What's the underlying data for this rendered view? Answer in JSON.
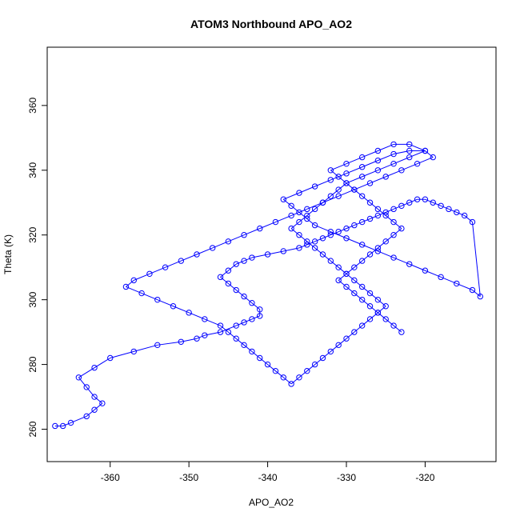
{
  "chart_data": {
    "type": "scatter",
    "title": "ATOM3 Northbound APO_AO2",
    "xlabel": "APO_AO2",
    "ylabel": "Theta (K)",
    "xlim": [
      -368,
      -311
    ],
    "ylim": [
      250,
      378
    ],
    "x_ticks": [
      -360,
      -350,
      -340,
      -330,
      -320
    ],
    "y_ticks": [
      260,
      280,
      300,
      320,
      340,
      360
    ],
    "series": [
      {
        "color": "#0000ff",
        "marker": "open-circle",
        "connected": true,
        "x": [
          -367,
          -366,
          -365,
          -363,
          -362,
          -361,
          -362,
          -363,
          -364,
          -362,
          -360,
          -357,
          -354,
          -351,
          -349,
          -348,
          -346,
          -344,
          -343,
          -342,
          -341,
          -341,
          -342,
          -343,
          -344,
          -345,
          -346,
          -345,
          -344,
          -343,
          -342,
          -340,
          -338,
          -336,
          -335,
          -334,
          -333,
          -332,
          -331,
          -330,
          -329,
          -328,
          -327,
          -326,
          -325,
          -324,
          -323,
          -322,
          -321,
          -320,
          -319,
          -318,
          -317,
          -316,
          -315,
          -314,
          -313,
          -314,
          -316,
          -318,
          -320,
          -322,
          -324,
          -326,
          -328,
          -330,
          -332,
          -334,
          -335,
          -336,
          -337,
          -338,
          -336,
          -334,
          -332,
          -330,
          -328,
          -326,
          -324,
          -322,
          -320,
          -322,
          -324,
          -326,
          -328,
          -330,
          -331,
          -332,
          -333,
          -334,
          -335,
          -336,
          -337,
          -336,
          -335,
          -334,
          -333,
          -332,
          -331,
          -330,
          -329,
          -328,
          -327,
          -326,
          -325,
          -326,
          -327,
          -328,
          -329,
          -330,
          -331,
          -332,
          -333,
          -334,
          -335,
          -336,
          -337,
          -338,
          -339,
          -340,
          -341,
          -342,
          -343,
          -344,
          -345,
          -346,
          -348,
          -350,
          -352,
          -354,
          -356,
          -358,
          -357,
          -355,
          -353,
          -351,
          -349,
          -347,
          -345,
          -343,
          -341,
          -339,
          -337,
          -335,
          -333,
          -331,
          -329,
          -327,
          -325,
          -323,
          -321,
          -319,
          -320,
          -322,
          -324,
          -326,
          -328,
          -330,
          -332,
          -331,
          -330,
          -329,
          -328,
          -327,
          -326,
          -325,
          -324,
          -323,
          -324,
          -325,
          -326,
          -327,
          -328,
          -329,
          -330,
          -331,
          -330,
          -329,
          -328,
          -327,
          -326,
          -325,
          -324,
          -323
        ],
        "y": [
          261,
          261,
          262,
          264,
          266,
          268,
          270,
          273,
          276,
          279,
          282,
          284,
          286,
          287,
          288,
          289,
          290,
          292,
          293,
          294,
          295,
          297,
          299,
          301,
          303,
          305,
          307,
          309,
          311,
          312,
          313,
          314,
          315,
          316,
          317,
          318,
          319,
          320,
          321,
          322,
          323,
          324,
          325,
          326,
          327,
          328,
          329,
          330,
          331,
          331,
          330,
          329,
          328,
          327,
          326,
          324,
          301,
          303,
          305,
          307,
          309,
          311,
          313,
          315,
          317,
          319,
          321,
          323,
          325,
          327,
          329,
          331,
          333,
          335,
          337,
          339,
          341,
          343,
          345,
          346,
          346,
          344,
          342,
          340,
          338,
          336,
          334,
          332,
          330,
          328,
          326,
          324,
          322,
          320,
          318,
          316,
          314,
          312,
          310,
          308,
          306,
          304,
          302,
          300,
          298,
          296,
          294,
          292,
          290,
          288,
          286,
          284,
          282,
          280,
          278,
          276,
          274,
          276,
          278,
          280,
          282,
          284,
          286,
          288,
          290,
          292,
          294,
          296,
          298,
          300,
          302,
          304,
          306,
          308,
          310,
          312,
          314,
          316,
          318,
          320,
          322,
          324,
          326,
          328,
          330,
          332,
          334,
          336,
          338,
          340,
          342,
          344,
          346,
          348,
          348,
          346,
          344,
          342,
          340,
          338,
          336,
          334,
          332,
          330,
          328,
          326,
          324,
          322,
          320,
          318,
          316,
          314,
          312,
          310,
          308,
          306,
          304,
          302,
          300,
          298,
          296,
          294,
          292,
          290
        ]
      }
    ]
  }
}
